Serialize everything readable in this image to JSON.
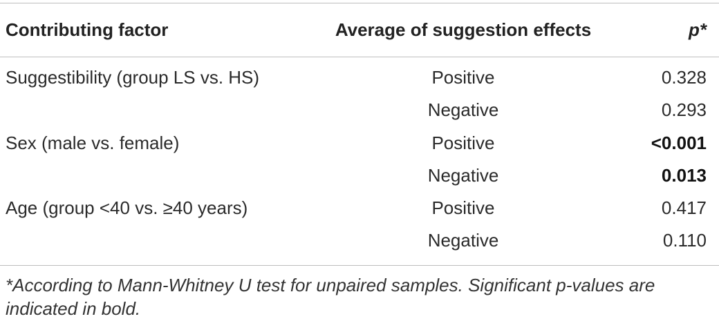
{
  "table": {
    "headers": {
      "factor": "Contributing factor",
      "average": "Average of suggestion effects",
      "p": "p*"
    },
    "rows": [
      {
        "factor": "Suggestibility (group LS vs. HS)",
        "effect": "Positive",
        "p": "0.328",
        "significant": false
      },
      {
        "factor": "",
        "effect": "Negative",
        "p": "0.293",
        "significant": false
      },
      {
        "factor": "Sex (male vs. female)",
        "effect": "Positive",
        "p": "<0.001",
        "significant": true
      },
      {
        "factor": "",
        "effect": "Negative",
        "p": "0.013",
        "significant": true
      },
      {
        "factor": "Age (group <40 vs. ≥40 years)",
        "effect": "Positive",
        "p": "0.417",
        "significant": false
      },
      {
        "factor": "",
        "effect": "Negative",
        "p": "0.110",
        "significant": false
      }
    ],
    "footnote": "*According to Mann-Whitney U test for unpaired samples. Significant p-values are indicated in bold."
  }
}
